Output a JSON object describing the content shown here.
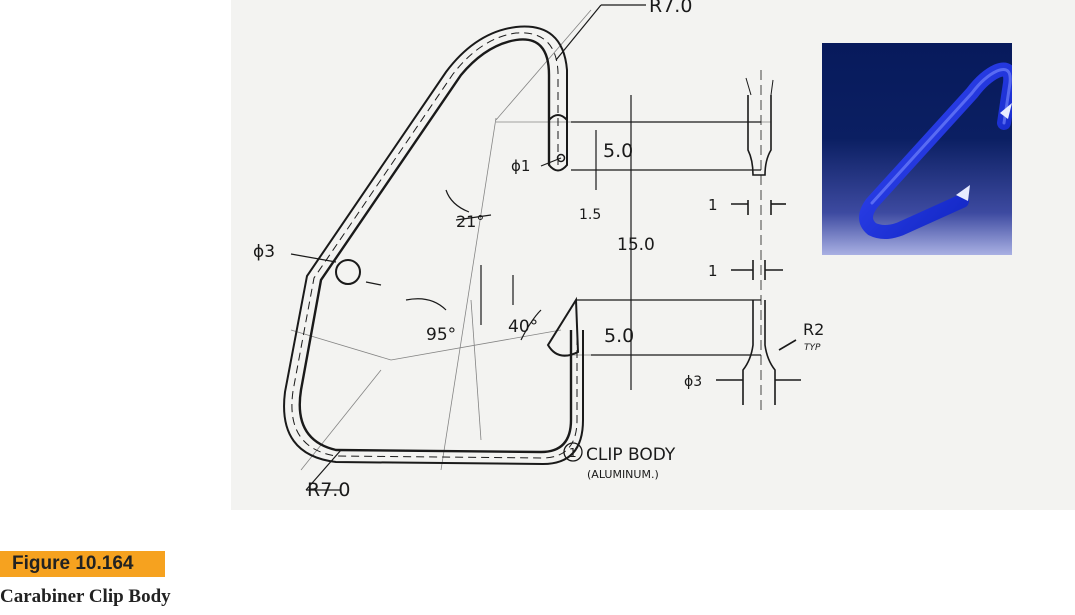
{
  "drawing": {
    "radius_top": "R7.0",
    "radius_bottom": "R7.0",
    "dim_top_gap": "5.0",
    "dim_mid": "15.0",
    "dim_bottom_gap": "5.0",
    "dim_hole_dia": "ϕ1",
    "dim_hole_offset": "1.5",
    "dim_rod_dia": "ϕ3",
    "angle_21": "21°",
    "angle_95": "95°",
    "angle_40": "40°",
    "dim_tip_top": "1",
    "dim_tip_bottom": "1",
    "dim_fillet": "R2",
    "dim_fillet_note": "TYP",
    "dim_shaft_dia": "ϕ3",
    "callout_number": "1",
    "callout_title": "CLIP BODY",
    "callout_material": "(ALUMINUM.)"
  },
  "figure": {
    "label": "Figure 10.164",
    "caption": "Carabiner Clip Body"
  }
}
